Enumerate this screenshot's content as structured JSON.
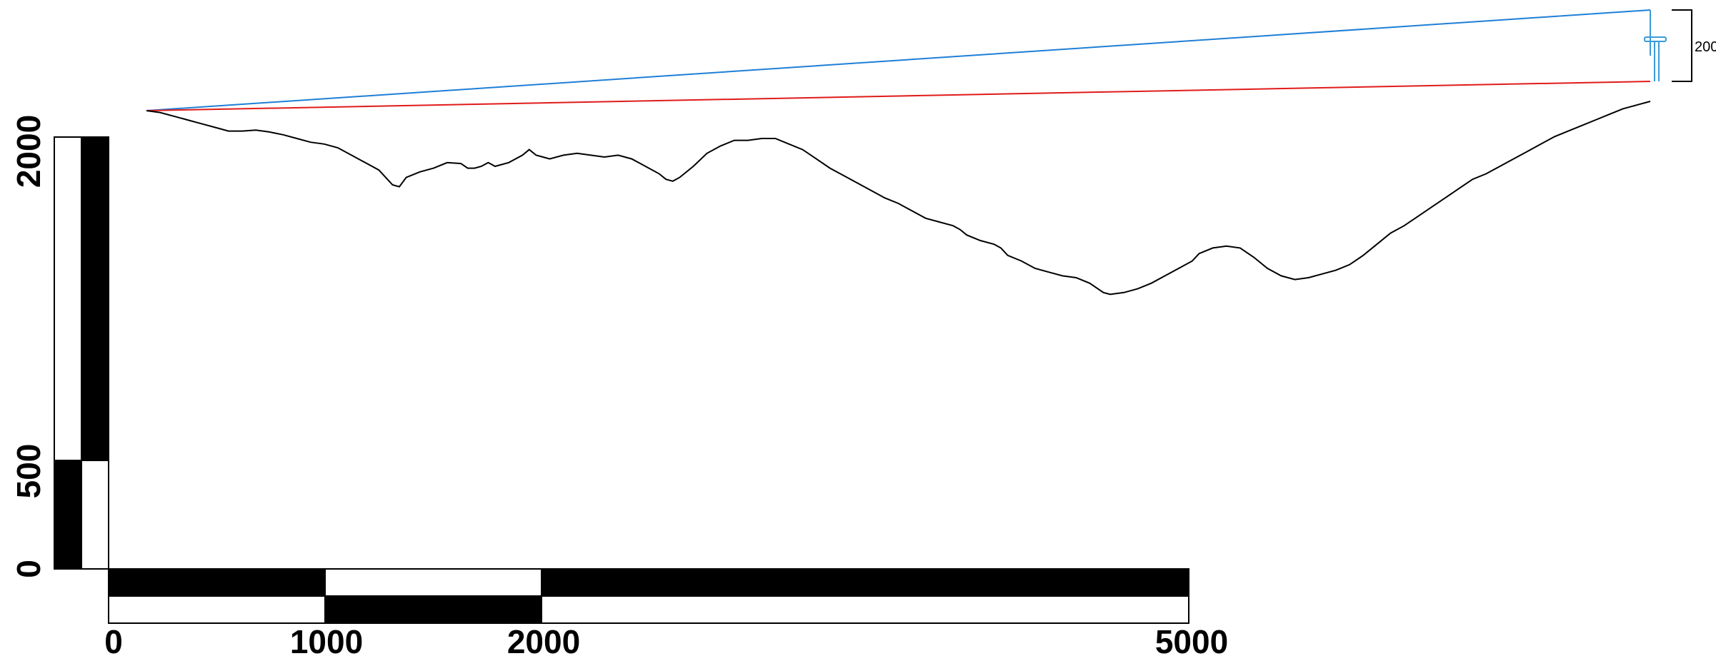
{
  "x_scale_bar": {
    "tick_labels": [
      "0",
      "1000",
      "2000",
      "5000"
    ],
    "tick_values": [
      0,
      1000,
      2000,
      5000
    ],
    "max": 5000
  },
  "y_scale_bar": {
    "tick_labels": [
      "0",
      "500",
      "2000"
    ],
    "tick_values": [
      0,
      500,
      2000
    ],
    "max": 2000
  },
  "height_marker": {
    "label": "200",
    "value": 200
  },
  "colors": {
    "terrain": "#000000",
    "sightline_blue": "#1f7fd6",
    "sightline_red": "#e01b1b",
    "turbine": "#3a9bd5"
  },
  "terrain_profile": {
    "description_units": "horizontal distance / elevation in scale-bar units",
    "points": [
      [
        0,
        100
      ],
      [
        40,
        98
      ],
      [
        80,
        94
      ],
      [
        120,
        90
      ],
      [
        160,
        86
      ],
      [
        200,
        82
      ],
      [
        240,
        78
      ],
      [
        280,
        78
      ],
      [
        320,
        79
      ],
      [
        360,
        77
      ],
      [
        400,
        74
      ],
      [
        440,
        70
      ],
      [
        480,
        66
      ],
      [
        520,
        64
      ],
      [
        560,
        60
      ],
      [
        600,
        52
      ],
      [
        640,
        44
      ],
      [
        680,
        36
      ],
      [
        700,
        28
      ],
      [
        720,
        20
      ],
      [
        740,
        18
      ],
      [
        760,
        28
      ],
      [
        800,
        34
      ],
      [
        840,
        38
      ],
      [
        880,
        44
      ],
      [
        920,
        43
      ],
      [
        940,
        38
      ],
      [
        960,
        38
      ],
      [
        980,
        40
      ],
      [
        1000,
        44
      ],
      [
        1020,
        40
      ],
      [
        1060,
        44
      ],
      [
        1100,
        52
      ],
      [
        1120,
        58
      ],
      [
        1140,
        52
      ],
      [
        1180,
        48
      ],
      [
        1220,
        52
      ],
      [
        1260,
        54
      ],
      [
        1300,
        52
      ],
      [
        1340,
        50
      ],
      [
        1380,
        52
      ],
      [
        1420,
        48
      ],
      [
        1460,
        40
      ],
      [
        1500,
        32
      ],
      [
        1520,
        26
      ],
      [
        1540,
        24
      ],
      [
        1560,
        28
      ],
      [
        1600,
        40
      ],
      [
        1640,
        54
      ],
      [
        1680,
        62
      ],
      [
        1720,
        68
      ],
      [
        1760,
        68
      ],
      [
        1800,
        70
      ],
      [
        1840,
        70
      ],
      [
        1880,
        64
      ],
      [
        1920,
        58
      ],
      [
        1960,
        48
      ],
      [
        2000,
        38
      ],
      [
        2040,
        30
      ],
      [
        2080,
        22
      ],
      [
        2120,
        14
      ],
      [
        2160,
        6
      ],
      [
        2200,
        0
      ],
      [
        2240,
        -8
      ],
      [
        2280,
        -16
      ],
      [
        2320,
        -20
      ],
      [
        2360,
        -24
      ],
      [
        2380,
        -28
      ],
      [
        2400,
        -34
      ],
      [
        2440,
        -40
      ],
      [
        2480,
        -44
      ],
      [
        2500,
        -48
      ],
      [
        2520,
        -56
      ],
      [
        2560,
        -62
      ],
      [
        2600,
        -70
      ],
      [
        2640,
        -74
      ],
      [
        2680,
        -78
      ],
      [
        2720,
        -80
      ],
      [
        2760,
        -86
      ],
      [
        2800,
        -96
      ],
      [
        2820,
        -98
      ],
      [
        2860,
        -96
      ],
      [
        2900,
        -92
      ],
      [
        2940,
        -86
      ],
      [
        2980,
        -78
      ],
      [
        3020,
        -70
      ],
      [
        3060,
        -62
      ],
      [
        3080,
        -54
      ],
      [
        3120,
        -48
      ],
      [
        3160,
        -46
      ],
      [
        3200,
        -48
      ],
      [
        3240,
        -58
      ],
      [
        3280,
        -70
      ],
      [
        3320,
        -78
      ],
      [
        3360,
        -82
      ],
      [
        3400,
        -80
      ],
      [
        3440,
        -76
      ],
      [
        3480,
        -72
      ],
      [
        3520,
        -66
      ],
      [
        3560,
        -56
      ],
      [
        3600,
        -44
      ],
      [
        3640,
        -32
      ],
      [
        3680,
        -24
      ],
      [
        3720,
        -14
      ],
      [
        3760,
        -4
      ],
      [
        3800,
        6
      ],
      [
        3840,
        16
      ],
      [
        3880,
        26
      ],
      [
        3920,
        32
      ],
      [
        3960,
        40
      ],
      [
        4000,
        48
      ],
      [
        4040,
        56
      ],
      [
        4080,
        64
      ],
      [
        4120,
        72
      ],
      [
        4160,
        78
      ],
      [
        4200,
        84
      ],
      [
        4240,
        90
      ],
      [
        4280,
        96
      ],
      [
        4320,
        102
      ],
      [
        4360,
        106
      ],
      [
        4400,
        110
      ]
    ]
  }
}
